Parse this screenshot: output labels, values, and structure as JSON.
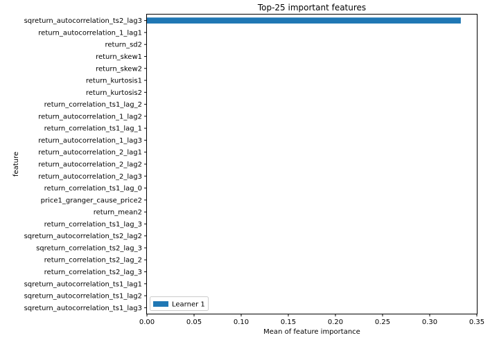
{
  "chart_data": {
    "type": "bar",
    "orientation": "horizontal",
    "title": "Top-25 important features",
    "xlabel": "Mean of feature importance",
    "ylabel": "feature",
    "xlim": [
      0,
      0.35
    ],
    "xticks": [
      0.0,
      0.05,
      0.1,
      0.15,
      0.2,
      0.25,
      0.3,
      0.35
    ],
    "xtick_labels": [
      "0.00",
      "0.05",
      "0.10",
      "0.15",
      "0.20",
      "0.25",
      "0.30",
      "0.35"
    ],
    "grid": false,
    "legend_position": "bottom-left",
    "categories": [
      "sqreturn_autocorrelation_ts2_lag3",
      "return_autocorrelation_1_lag1",
      "return_sd2",
      "return_skew1",
      "return_skew2",
      "return_kurtosis1",
      "return_kurtosis2",
      "return_correlation_ts1_lag_2",
      "return_autocorrelation_1_lag2",
      "return_correlation_ts1_lag_1",
      "return_autocorrelation_1_lag3",
      "return_autocorrelation_2_lag1",
      "return_autocorrelation_2_lag2",
      "return_autocorrelation_2_lag3",
      "return_correlation_ts1_lag_0",
      "price1_granger_cause_price2",
      "return_mean2",
      "return_correlation_ts1_lag_3",
      "sqreturn_autocorrelation_ts2_lag2",
      "sqreturn_correlation_ts2_lag_3",
      "return_correlation_ts2_lag_2",
      "return_correlation_ts2_lag_3",
      "sqreturn_autocorrelation_ts1_lag1",
      "sqreturn_autocorrelation_ts1_lag2",
      "sqreturn_autocorrelation_ts1_lag3"
    ],
    "series": [
      {
        "name": "Learner 1",
        "color": "#1f77b4",
        "values": [
          0.333,
          0,
          0,
          0,
          0,
          0,
          0,
          0,
          0,
          0,
          0,
          0,
          0,
          0,
          0,
          0,
          0,
          0,
          0,
          0,
          0,
          0,
          0,
          0,
          0
        ]
      }
    ]
  }
}
